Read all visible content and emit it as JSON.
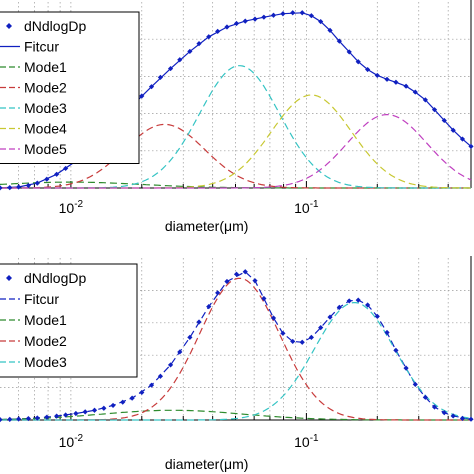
{
  "chart_data": [
    {
      "type": "line",
      "xscale": "log",
      "xlim": [
        0.005,
        0.5
      ],
      "xlabel": "diameter(μm)",
      "x_ticks": [
        {
          "value": 0.01,
          "base": "10",
          "exp": "-2"
        },
        {
          "value": 0.1,
          "base": "10",
          "exp": "-1"
        }
      ],
      "grid": true,
      "legend_position": "top-left",
      "series": [
        {
          "name": "dNdlogDp",
          "style": "markers",
          "color": "#1020c0",
          "points": [
            [
              0.005,
              0.0003
            ],
            [
              0.0055,
              0.0008
            ],
            [
              0.006,
              0.002
            ],
            [
              0.0066,
              0.005
            ],
            [
              0.0072,
              0.01
            ],
            [
              0.0079,
              0.018
            ],
            [
              0.0087,
              0.028
            ],
            [
              0.0095,
              0.04
            ],
            [
              0.0105,
              0.055
            ],
            [
              0.0115,
              0.072
            ],
            [
              0.0126,
              0.09
            ],
            [
              0.0138,
              0.109
            ],
            [
              0.0151,
              0.128
            ],
            [
              0.0166,
              0.148
            ],
            [
              0.0182,
              0.168
            ],
            [
              0.02,
              0.188
            ],
            [
              0.022,
              0.207
            ],
            [
              0.024,
              0.226
            ],
            [
              0.0265,
              0.244
            ],
            [
              0.029,
              0.262
            ],
            [
              0.032,
              0.279
            ],
            [
              0.035,
              0.295
            ],
            [
              0.0385,
              0.309
            ],
            [
              0.042,
              0.32
            ],
            [
              0.046,
              0.329
            ],
            [
              0.0505,
              0.336
            ],
            [
              0.055,
              0.341
            ],
            [
              0.0605,
              0.345
            ],
            [
              0.066,
              0.349
            ],
            [
              0.0725,
              0.353
            ],
            [
              0.0795,
              0.356
            ],
            [
              0.0875,
              0.358
            ],
            [
              0.096,
              0.358
            ],
            [
              0.105,
              0.352
            ],
            [
              0.115,
              0.34
            ],
            [
              0.126,
              0.322
            ],
            [
              0.138,
              0.3
            ],
            [
              0.152,
              0.278
            ],
            [
              0.166,
              0.258
            ],
            [
              0.182,
              0.242
            ],
            [
              0.2,
              0.23
            ],
            [
              0.22,
              0.222
            ],
            [
              0.24,
              0.216
            ],
            [
              0.265,
              0.208
            ],
            [
              0.29,
              0.196
            ],
            [
              0.32,
              0.18
            ],
            [
              0.35,
              0.16
            ],
            [
              0.385,
              0.138
            ],
            [
              0.42,
              0.118
            ],
            [
              0.46,
              0.1
            ],
            [
              0.5,
              0.085
            ]
          ]
        },
        {
          "name": "Fitcur",
          "style": "solid",
          "color": "#1020c0",
          "points": [
            [
              0.005,
              0.0003
            ],
            [
              0.006,
              0.002
            ],
            [
              0.0072,
              0.01
            ],
            [
              0.0087,
              0.028
            ],
            [
              0.0105,
              0.055
            ],
            [
              0.0126,
              0.09
            ],
            [
              0.0151,
              0.128
            ],
            [
              0.0182,
              0.168
            ],
            [
              0.022,
              0.207
            ],
            [
              0.0265,
              0.244
            ],
            [
              0.032,
              0.279
            ],
            [
              0.0385,
              0.309
            ],
            [
              0.046,
              0.329
            ],
            [
              0.055,
              0.341
            ],
            [
              0.066,
              0.349
            ],
            [
              0.0795,
              0.356
            ],
            [
              0.096,
              0.358
            ],
            [
              0.105,
              0.352
            ],
            [
              0.115,
              0.34
            ],
            [
              0.126,
              0.322
            ],
            [
              0.138,
              0.3
            ],
            [
              0.152,
              0.278
            ],
            [
              0.166,
              0.258
            ],
            [
              0.182,
              0.242
            ],
            [
              0.2,
              0.23
            ],
            [
              0.22,
              0.222
            ],
            [
              0.24,
              0.216
            ],
            [
              0.265,
              0.208
            ],
            [
              0.29,
              0.196
            ],
            [
              0.32,
              0.18
            ],
            [
              0.35,
              0.16
            ],
            [
              0.385,
              0.138
            ],
            [
              0.42,
              0.118
            ],
            [
              0.46,
              0.1
            ],
            [
              0.5,
              0.085
            ]
          ]
        },
        {
          "name": "Mode1",
          "style": "dashed",
          "color": "#2e8b2e",
          "mu": 0.01,
          "sigma": 0.3,
          "amp": 0.012
        },
        {
          "name": "Mode2",
          "style": "dashed",
          "color": "#c83c3c",
          "mu": 0.025,
          "sigma": 0.17,
          "amp": 0.13
        },
        {
          "name": "Mode3",
          "style": "dashed",
          "color": "#35c4c4",
          "mu": 0.052,
          "sigma": 0.17,
          "amp": 0.25
        },
        {
          "name": "Mode4",
          "style": "dashed",
          "color": "#c8c832",
          "mu": 0.105,
          "sigma": 0.17,
          "amp": 0.19
        },
        {
          "name": "Mode5",
          "style": "dashed",
          "color": "#c040c0",
          "mu": 0.22,
          "sigma": 0.17,
          "amp": 0.15
        }
      ]
    },
    {
      "type": "line",
      "xscale": "log",
      "xlim": [
        0.005,
        0.5
      ],
      "xlabel": "diameter(μm)",
      "x_ticks": [
        {
          "value": 0.01,
          "base": "10",
          "exp": "-2"
        },
        {
          "value": 0.1,
          "base": "10",
          "exp": "-1"
        }
      ],
      "grid": true,
      "legend_position": "top-left",
      "series": [
        {
          "name": "dNdlogDp",
          "style": "markers",
          "color": "#1020c0",
          "points": [
            [
              0.005,
              0.0005
            ],
            [
              0.0055,
              0.0008
            ],
            [
              0.006,
              0.0012
            ],
            [
              0.0066,
              0.0018
            ],
            [
              0.0072,
              0.0025
            ],
            [
              0.0079,
              0.0035
            ],
            [
              0.0087,
              0.0048
            ],
            [
              0.0095,
              0.0062
            ],
            [
              0.0105,
              0.008
            ],
            [
              0.0115,
              0.01
            ],
            [
              0.0126,
              0.012
            ],
            [
              0.0138,
              0.0145
            ],
            [
              0.0151,
              0.018
            ],
            [
              0.0166,
              0.022
            ],
            [
              0.0182,
              0.027
            ],
            [
              0.02,
              0.034
            ],
            [
              0.022,
              0.043
            ],
            [
              0.024,
              0.054
            ],
            [
              0.0265,
              0.068
            ],
            [
              0.029,
              0.084
            ],
            [
              0.032,
              0.102
            ],
            [
              0.035,
              0.121
            ],
            [
              0.0385,
              0.14
            ],
            [
              0.042,
              0.157
            ],
            [
              0.046,
              0.171
            ],
            [
              0.0505,
              0.18
            ],
            [
              0.055,
              0.183
            ],
            [
              0.0605,
              0.172
            ],
            [
              0.066,
              0.15
            ],
            [
              0.0725,
              0.126
            ],
            [
              0.0795,
              0.107
            ],
            [
              0.0875,
              0.097
            ],
            [
              0.096,
              0.096
            ],
            [
              0.105,
              0.102
            ],
            [
              0.115,
              0.114
            ],
            [
              0.126,
              0.127
            ],
            [
              0.138,
              0.139
            ],
            [
              0.152,
              0.147
            ],
            [
              0.166,
              0.148
            ],
            [
              0.182,
              0.142
            ],
            [
              0.2,
              0.128
            ],
            [
              0.22,
              0.108
            ],
            [
              0.24,
              0.086
            ],
            [
              0.265,
              0.064
            ],
            [
              0.29,
              0.044
            ],
            [
              0.32,
              0.028
            ],
            [
              0.35,
              0.016
            ],
            [
              0.385,
              0.009
            ],
            [
              0.42,
              0.005
            ],
            [
              0.46,
              0.002
            ],
            [
              0.5,
              0.001
            ]
          ]
        },
        {
          "name": "Fitcur",
          "style": "dashed",
          "color": "#1020c0",
          "points": [
            [
              0.005,
              0.0005
            ],
            [
              0.006,
              0.0012
            ],
            [
              0.0072,
              0.0025
            ],
            [
              0.0087,
              0.0048
            ],
            [
              0.0105,
              0.008
            ],
            [
              0.0126,
              0.012
            ],
            [
              0.0151,
              0.018
            ],
            [
              0.0182,
              0.027
            ],
            [
              0.022,
              0.043
            ],
            [
              0.0265,
              0.068
            ],
            [
              0.032,
              0.102
            ],
            [
              0.0385,
              0.14
            ],
            [
              0.046,
              0.171
            ],
            [
              0.055,
              0.183
            ],
            [
              0.0605,
              0.172
            ],
            [
              0.066,
              0.15
            ],
            [
              0.0725,
              0.126
            ],
            [
              0.0795,
              0.107
            ],
            [
              0.0875,
              0.097
            ],
            [
              0.096,
              0.096
            ],
            [
              0.105,
              0.102
            ],
            [
              0.115,
              0.114
            ],
            [
              0.126,
              0.127
            ],
            [
              0.138,
              0.139
            ],
            [
              0.152,
              0.147
            ],
            [
              0.166,
              0.148
            ],
            [
              0.182,
              0.142
            ],
            [
              0.2,
              0.128
            ],
            [
              0.22,
              0.108
            ],
            [
              0.24,
              0.086
            ],
            [
              0.265,
              0.064
            ],
            [
              0.29,
              0.044
            ],
            [
              0.32,
              0.028
            ],
            [
              0.35,
              0.016
            ],
            [
              0.385,
              0.009
            ],
            [
              0.42,
              0.005
            ],
            [
              0.5,
              0.001
            ]
          ]
        },
        {
          "name": "Mode1",
          "style": "dashed",
          "color": "#2e8b2e",
          "mu": 0.027,
          "sigma": 0.3,
          "amp": 0.012
        },
        {
          "name": "Mode2",
          "style": "dashed",
          "color": "#c83c3c",
          "mu": 0.052,
          "sigma": 0.17,
          "amp": 0.175
        },
        {
          "name": "Mode3",
          "style": "dashed",
          "color": "#35c4c4",
          "mu": 0.16,
          "sigma": 0.17,
          "amp": 0.145
        }
      ]
    }
  ]
}
